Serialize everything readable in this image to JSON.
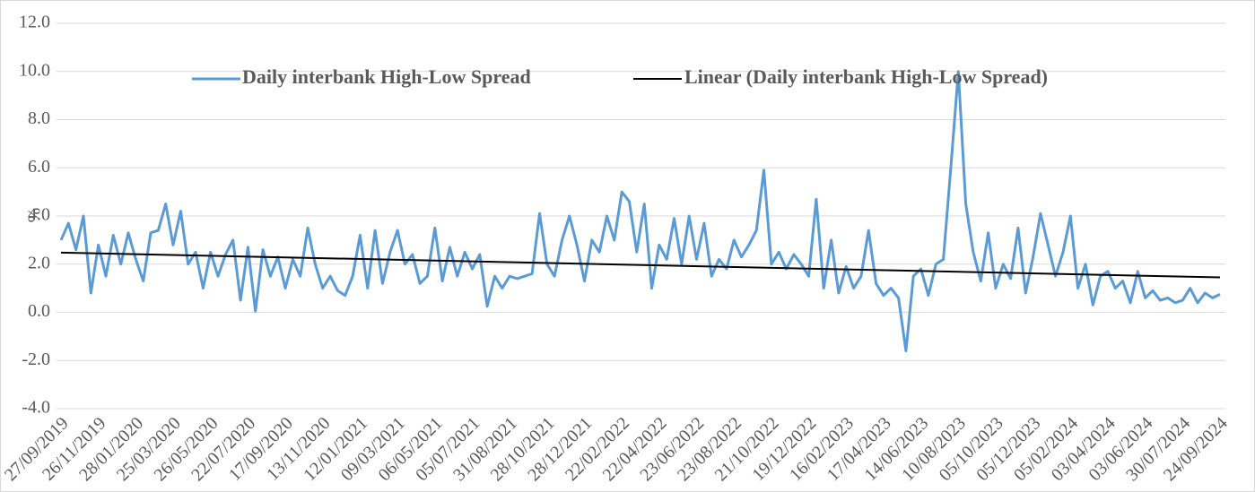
{
  "chart_data": {
    "type": "line",
    "y_label": "%",
    "categories": [
      "27/09/2019",
      null,
      null,
      null,
      null,
      "26/11/2019",
      null,
      null,
      null,
      null,
      "28/01/2020",
      null,
      null,
      null,
      null,
      "25/03/2020",
      null,
      null,
      null,
      null,
      "26/05/2020",
      null,
      null,
      null,
      null,
      "22/07/2020",
      null,
      null,
      null,
      null,
      "17/09/2020",
      null,
      null,
      null,
      null,
      "13/11/2020",
      null,
      null,
      null,
      null,
      "12/01/2021",
      null,
      null,
      null,
      null,
      "09/03/2021",
      null,
      null,
      null,
      null,
      "06/05/2021",
      null,
      null,
      null,
      null,
      "05/07/2021",
      null,
      null,
      null,
      null,
      "31/08/2021",
      null,
      null,
      null,
      null,
      "28/10/2021",
      null,
      null,
      null,
      null,
      "28/12/2021",
      null,
      null,
      null,
      null,
      "22/02/2022",
      null,
      null,
      null,
      null,
      "22/04/2022",
      null,
      null,
      null,
      null,
      "23/06/2022",
      null,
      null,
      null,
      null,
      "23/08/2022",
      null,
      null,
      null,
      null,
      "21/10/2022",
      null,
      null,
      null,
      null,
      "19/12/2022",
      null,
      null,
      null,
      null,
      "16/02/2023",
      null,
      null,
      null,
      null,
      "17/04/2023",
      null,
      null,
      null,
      null,
      "14/06/2023",
      null,
      null,
      null,
      null,
      "10/08/2023",
      null,
      null,
      null,
      null,
      "05/10/2023",
      null,
      null,
      null,
      null,
      "05/12/2023",
      null,
      null,
      null,
      null,
      "05/02/2024",
      null,
      null,
      null,
      null,
      "03/04/2024",
      null,
      null,
      null,
      null,
      "03/06/2024",
      null,
      null,
      null,
      null,
      "30/07/2024",
      null,
      null,
      null,
      null,
      "24/09/2024"
    ],
    "series": [
      {
        "name": "Daily interbank High-Low Spread",
        "color": "#5b9bd5",
        "values": [
          3.0,
          3.7,
          2.6,
          4.0,
          0.8,
          2.8,
          1.5,
          3.2,
          2.0,
          3.3,
          2.2,
          1.3,
          3.3,
          3.4,
          4.5,
          2.8,
          4.2,
          2.0,
          2.5,
          1.0,
          2.5,
          1.5,
          2.4,
          3.0,
          0.5,
          2.7,
          0.05,
          2.6,
          1.5,
          2.3,
          1.0,
          2.2,
          1.5,
          3.5,
          2.0,
          1.0,
          1.5,
          0.9,
          0.7,
          1.5,
          3.2,
          1.0,
          3.4,
          1.2,
          2.5,
          3.4,
          2.0,
          2.4,
          1.2,
          1.5,
          3.5,
          1.3,
          2.7,
          1.5,
          2.5,
          1.8,
          2.4,
          0.25,
          1.5,
          1.0,
          1.5,
          1.4,
          1.5,
          1.6,
          4.1,
          2.0,
          1.5,
          3.0,
          4.0,
          2.8,
          1.3,
          3.0,
          2.5,
          4.0,
          3.0,
          5.0,
          4.6,
          2.5,
          4.5,
          1.0,
          2.8,
          2.2,
          3.9,
          2.0,
          4.0,
          2.2,
          3.7,
          1.5,
          2.2,
          1.8,
          3.0,
          2.3,
          2.8,
          3.4,
          5.9,
          2.0,
          2.5,
          1.8,
          2.4,
          2.0,
          1.5,
          4.7,
          1.0,
          3.0,
          0.8,
          1.9,
          1.0,
          1.5,
          3.4,
          1.2,
          0.7,
          1.0,
          0.6,
          -1.6,
          1.5,
          1.8,
          0.7,
          2.0,
          2.2,
          6.0,
          10.0,
          4.5,
          2.5,
          1.3,
          3.3,
          1.0,
          2.0,
          1.4,
          3.5,
          0.8,
          2.3,
          4.1,
          2.8,
          1.5,
          2.5,
          4.0,
          1.0,
          2.0,
          0.3,
          1.5,
          1.7,
          1.0,
          1.3,
          0.4,
          1.7,
          0.6,
          0.9,
          0.5,
          0.6,
          0.4,
          0.5,
          1.0,
          0.4,
          0.8,
          0.6,
          0.75
        ]
      }
    ],
    "trendline": {
      "name": "Linear (Daily interbank High-Low Spread)",
      "color": "#000000",
      "start": 2.48,
      "end": 1.45
    },
    "ylim": [
      -4,
      12
    ],
    "yticks": [
      {
        "value": -4,
        "label": "-4.0"
      },
      {
        "value": -2,
        "label": "-2.0"
      },
      {
        "value": 0,
        "label": "0.0"
      },
      {
        "value": 2,
        "label": "2.0"
      },
      {
        "value": 4,
        "label": "4.0"
      },
      {
        "value": 6,
        "label": "6.0"
      },
      {
        "value": 8,
        "label": "8.0"
      },
      {
        "value": 10,
        "label": "10.0"
      },
      {
        "value": 12,
        "label": "12.0"
      }
    ],
    "grid": true
  }
}
